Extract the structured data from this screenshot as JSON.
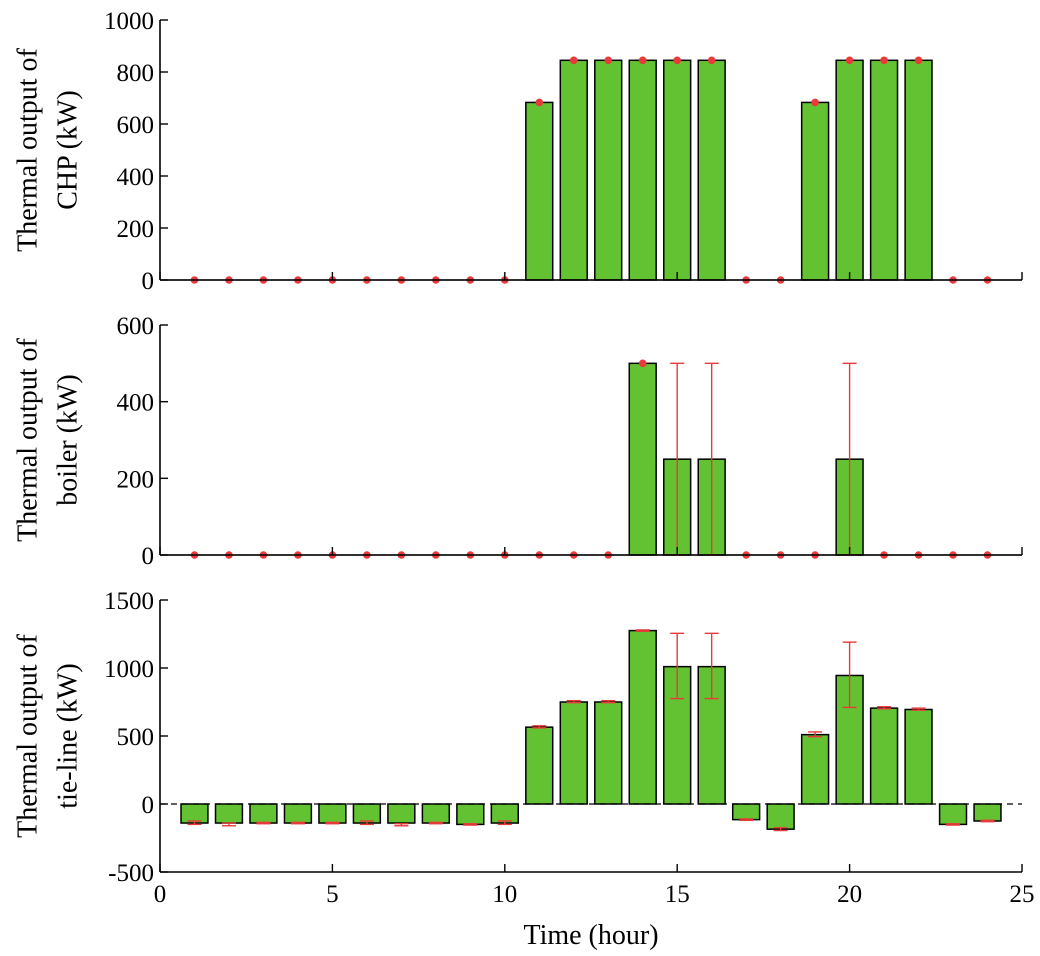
{
  "chart_data": [
    {
      "type": "bar",
      "ylabel_lines": [
        "Thermal output of",
        "CHP (kW)"
      ],
      "xlim": [
        0,
        25
      ],
      "ylim": [
        0,
        1000
      ],
      "yticks": [
        0,
        200,
        400,
        600,
        800,
        1000
      ],
      "x": [
        1,
        2,
        3,
        4,
        5,
        6,
        7,
        8,
        9,
        10,
        11,
        12,
        13,
        14,
        15,
        16,
        17,
        18,
        19,
        20,
        21,
        22,
        23,
        24
      ],
      "values": [
        0,
        0,
        0,
        0,
        0,
        0,
        0,
        0,
        0,
        0,
        683,
        845,
        845,
        845,
        845,
        845,
        0,
        0,
        683,
        845,
        845,
        845,
        0,
        0
      ],
      "error_low": [
        0,
        0,
        0,
        0,
        0,
        0,
        0,
        0,
        0,
        0,
        683,
        845,
        845,
        845,
        845,
        845,
        0,
        0,
        683,
        845,
        845,
        845,
        0,
        0
      ],
      "error_high": [
        0,
        0,
        0,
        0,
        0,
        0,
        0,
        0,
        0,
        0,
        683,
        845,
        845,
        845,
        845,
        845,
        0,
        0,
        683,
        845,
        845,
        845,
        0,
        0
      ]
    },
    {
      "type": "bar",
      "ylabel_lines": [
        "Thermal output of",
        "boiler (kW)"
      ],
      "xlim": [
        0,
        25
      ],
      "ylim": [
        0,
        600
      ],
      "yticks": [
        0,
        200,
        400,
        600
      ],
      "x": [
        1,
        2,
        3,
        4,
        5,
        6,
        7,
        8,
        9,
        10,
        11,
        12,
        13,
        14,
        15,
        16,
        17,
        18,
        19,
        20,
        21,
        22,
        23,
        24
      ],
      "values": [
        0,
        0,
        0,
        0,
        0,
        0,
        0,
        0,
        0,
        0,
        0,
        0,
        0,
        500,
        250,
        250,
        0,
        0,
        0,
        250,
        0,
        0,
        0,
        0
      ],
      "error_low": [
        0,
        0,
        0,
        0,
        0,
        0,
        0,
        0,
        0,
        0,
        0,
        0,
        0,
        500,
        0,
        0,
        0,
        0,
        0,
        0,
        0,
        0,
        0,
        0
      ],
      "error_high": [
        0,
        0,
        0,
        0,
        0,
        0,
        0,
        0,
        0,
        0,
        0,
        0,
        0,
        500,
        500,
        500,
        0,
        0,
        0,
        500,
        0,
        0,
        0,
        0
      ]
    },
    {
      "type": "bar",
      "ylabel_lines": [
        "Thermal output of",
        "tie-line (kW)"
      ],
      "xlabel": "Time (hour)",
      "xlim": [
        0,
        25
      ],
      "ylim": [
        -500,
        1500
      ],
      "yticks": [
        -500,
        0,
        500,
        1000,
        1500
      ],
      "xticks": [
        0,
        5,
        10,
        15,
        20,
        25
      ],
      "x": [
        1,
        2,
        3,
        4,
        5,
        6,
        7,
        8,
        9,
        10,
        11,
        12,
        13,
        14,
        15,
        16,
        17,
        18,
        19,
        20,
        21,
        22,
        23,
        24
      ],
      "values": [
        -140,
        -140,
        -140,
        -140,
        -140,
        -140,
        -140,
        -140,
        -150,
        -140,
        565,
        750,
        750,
        1275,
        1010,
        1010,
        -115,
        -185,
        510,
        945,
        705,
        695,
        -150,
        -125
      ],
      "error_low": [
        -150,
        -160,
        -145,
        -145,
        -145,
        -150,
        -160,
        -145,
        -155,
        -150,
        560,
        745,
        745,
        1270,
        775,
        775,
        -120,
        -195,
        495,
        710,
        700,
        690,
        -155,
        -130
      ],
      "error_high": [
        -125,
        -140,
        -135,
        -135,
        -135,
        -125,
        -145,
        -135,
        -145,
        -125,
        575,
        760,
        760,
        1280,
        1255,
        1255,
        -110,
        -175,
        530,
        1190,
        715,
        705,
        -145,
        -120
      ]
    }
  ],
  "colors": {
    "bar_fill": "#63c232",
    "bar_stroke": "#000000",
    "error": "#e83a3a",
    "marker": "#e83a3a"
  }
}
